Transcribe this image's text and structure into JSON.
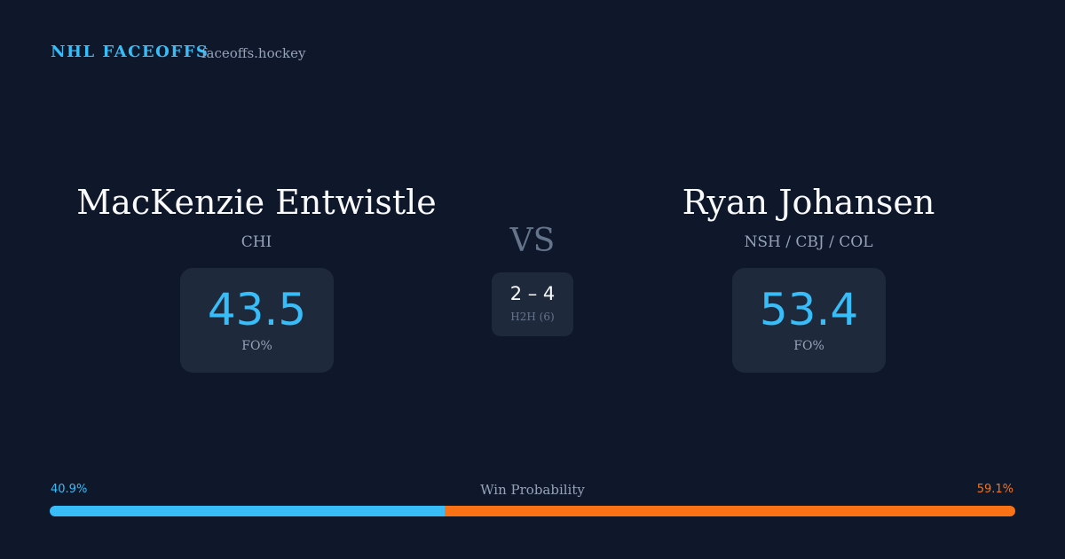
{
  "header": {
    "title": "NHL FACEOFFS",
    "site": "faceoffs.hockey"
  },
  "players": [
    {
      "name": "MacKenzie Entwistle",
      "teams": "CHI",
      "fo_pct": 43.5,
      "fo_label": "FO%"
    },
    {
      "name": "Ryan Johansen",
      "teams": "NSH / CBJ / COL",
      "fo_pct": 53.4,
      "fo_label": "FO%"
    }
  ],
  "vs": "VS",
  "h2h": {
    "score": "2 – 4",
    "label": "H2H (6)"
  },
  "win_probability": {
    "label": "Win Probability",
    "left": {
      "value": 40.9,
      "label": "40.9%",
      "color": "#38bdf8"
    },
    "right": {
      "value": 59.1,
      "label": "59.1%",
      "color": "#f97316"
    }
  }
}
